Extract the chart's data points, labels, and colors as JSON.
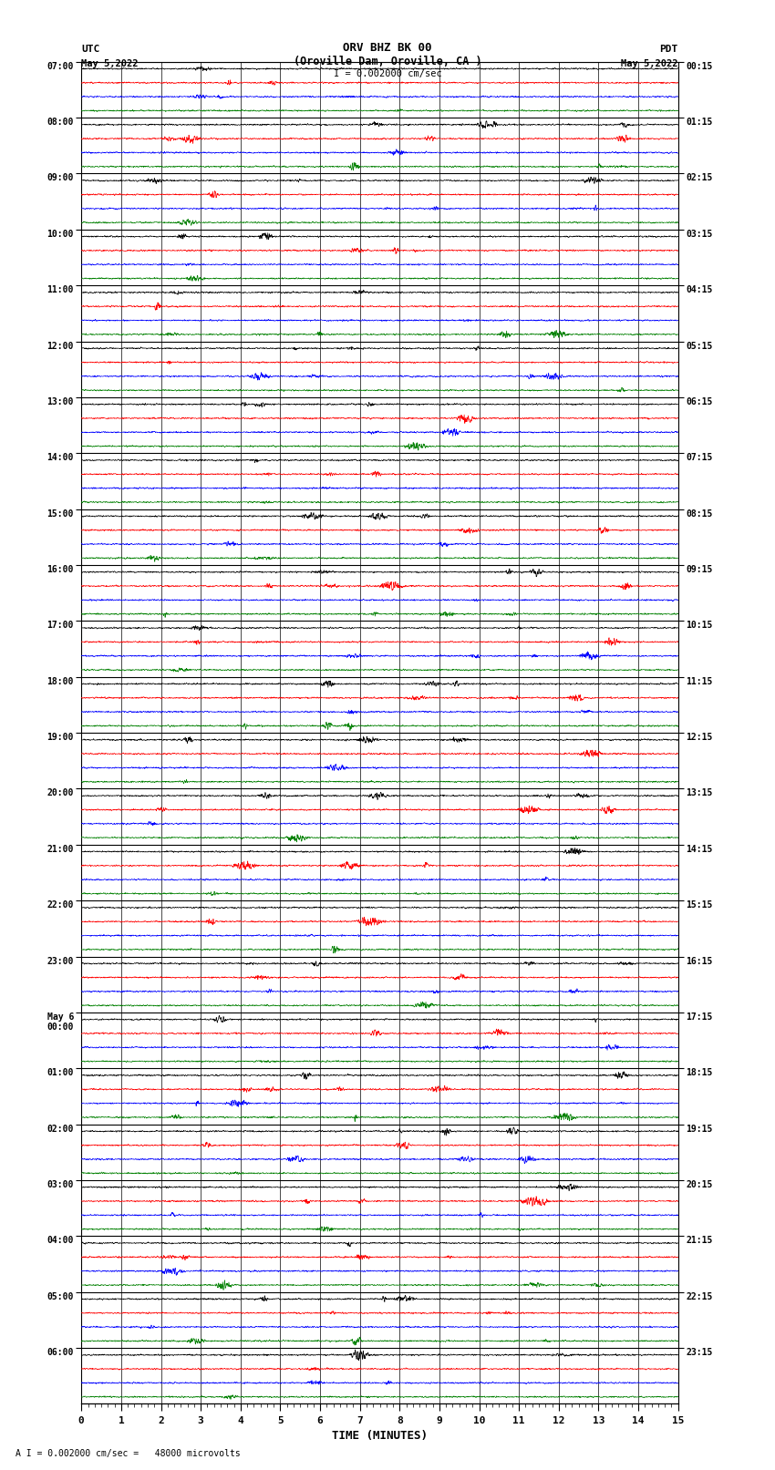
{
  "title_line1": "ORV BHZ BK 00",
  "title_line2": "(Oroville Dam, Oroville, CA )",
  "scale_label": "I = 0.002000 cm/sec",
  "bottom_label": "A I = 0.002000 cm/sec =   48000 microvolts",
  "xlabel": "TIME (MINUTES)",
  "left_label_line1": "UTC",
  "left_label_line2": "May 5,2022",
  "right_label_line1": "PDT",
  "right_label_line2": "May 5,2022",
  "left_times": [
    "07:00",
    "08:00",
    "09:00",
    "10:00",
    "11:00",
    "12:00",
    "13:00",
    "14:00",
    "15:00",
    "16:00",
    "17:00",
    "18:00",
    "19:00",
    "20:00",
    "21:00",
    "22:00",
    "23:00",
    "May 6\n00:00",
    "01:00",
    "02:00",
    "03:00",
    "04:00",
    "05:00",
    "06:00"
  ],
  "right_times": [
    "00:15",
    "01:15",
    "02:15",
    "03:15",
    "04:15",
    "05:15",
    "06:15",
    "07:15",
    "08:15",
    "09:15",
    "10:15",
    "11:15",
    "12:15",
    "13:15",
    "14:15",
    "15:15",
    "16:15",
    "17:15",
    "18:15",
    "19:15",
    "20:15",
    "21:15",
    "22:15",
    "23:15"
  ],
  "n_rows": 24,
  "traces_per_row": 4,
  "trace_colors": [
    "black",
    "red",
    "blue",
    "green"
  ],
  "bg_color": "white",
  "minutes": 15,
  "figsize": [
    8.5,
    16.13
  ],
  "dpi": 100,
  "grid_color": "#808080",
  "grid_linewidth": 0.5,
  "trace_linewidth": 0.5,
  "trace_amplitude": 0.25,
  "noise_amplitude": 0.04
}
